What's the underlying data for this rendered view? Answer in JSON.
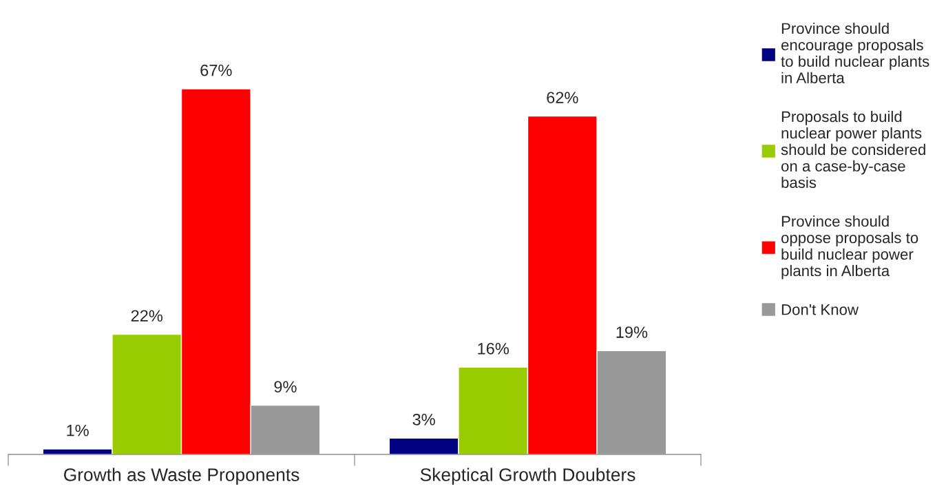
{
  "chart_data": {
    "type": "bar",
    "categories": [
      "Growth as Waste Proponents",
      "Skeptical Growth Doubters"
    ],
    "series": [
      {
        "name": "Province should\nencourage proposals\nto build nuclear plants\nin Alberta",
        "color": "#000080",
        "values": [
          1,
          3
        ],
        "value_labels": [
          "1%",
          "3%"
        ]
      },
      {
        "name": "Proposals to build\nnuclear power plants\nshould be considered\non a case-by-case\nbasis",
        "color": "#99cc00",
        "values": [
          22,
          16
        ],
        "value_labels": [
          "22%",
          "16%"
        ]
      },
      {
        "name": "Province should\noppose proposals to\nbuild nuclear power\nplants in Alberta",
        "color": "#ff0000",
        "values": [
          67,
          62
        ],
        "value_labels": [
          "67%",
          "62%"
        ]
      },
      {
        "name": "Don't Know",
        "color": "#999999",
        "values": [
          9,
          19
        ],
        "value_labels": [
          "9%",
          "19%"
        ]
      }
    ],
    "legend": "right",
    "grid": false
  }
}
